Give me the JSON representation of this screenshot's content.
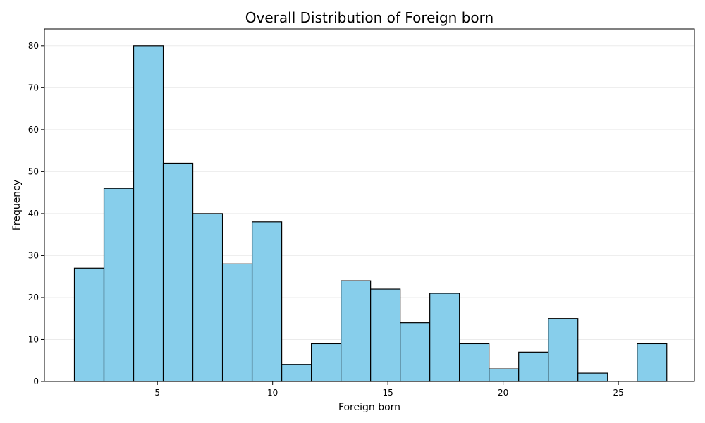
{
  "chart_data": {
    "type": "bar",
    "title": "Overall Distribution of Foreign born",
    "xlabel": "Foreign born",
    "ylabel": "Frequency",
    "x_bin_start": 1.4,
    "x_bin_end": 27.1,
    "values": [
      27,
      46,
      80,
      52,
      40,
      28,
      38,
      4,
      9,
      24,
      22,
      14,
      21,
      9,
      3,
      7,
      15,
      2,
      0,
      9
    ],
    "xlim": [
      0.1,
      28.3
    ],
    "ylim": [
      0,
      84
    ],
    "x_ticks": [
      5,
      10,
      15,
      20,
      25
    ],
    "y_ticks": [
      0,
      10,
      20,
      30,
      40,
      50,
      60,
      70,
      80
    ],
    "grid": "y",
    "colors": {
      "bar_fill": "#87ceeb",
      "bar_edge": "#000000",
      "grid": "#ebebeb"
    }
  }
}
